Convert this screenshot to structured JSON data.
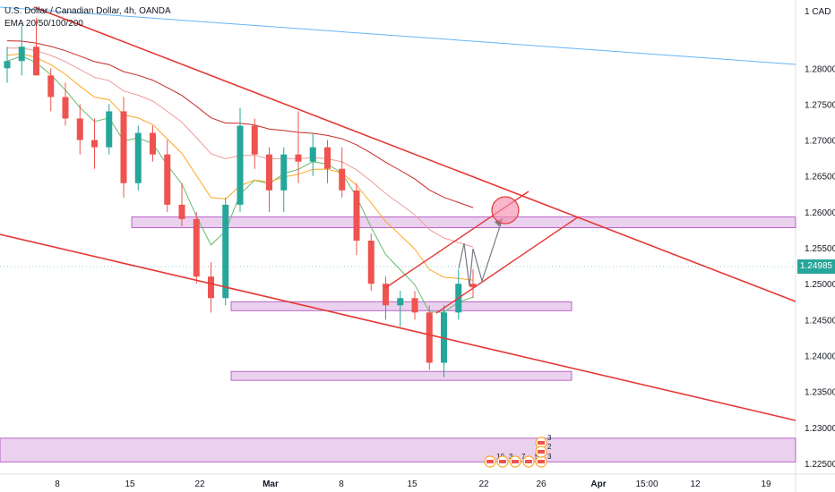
{
  "header": {
    "symbol_line": "U.S. Dollar / Canadian Dollar, 4h, OANDA",
    "indicator_line": "EMA 20/50/100/200"
  },
  "price_axis": {
    "unit": "1 CAD",
    "ticks": [
      "1.28000",
      "1.27500",
      "1.27000",
      "1.26500",
      "1.26000",
      "1.25500",
      "1.25000",
      "1.24500",
      "1.24000",
      "1.23500",
      "1.23000",
      "1.22500"
    ],
    "tick_values": [
      1.28,
      1.275,
      1.27,
      1.265,
      1.26,
      1.255,
      1.25,
      1.245,
      1.24,
      1.235,
      1.23,
      1.225
    ],
    "current_price": "1.24985"
  },
  "time_axis": {
    "labels": [
      "8",
      "15",
      "22",
      "Mar",
      "8",
      "15",
      "22",
      "26",
      "Apr",
      "15:00",
      "12",
      "19"
    ]
  },
  "event_markers": {
    "counts": [
      "10",
      "3",
      "7",
      "5",
      "3",
      "3",
      "2"
    ]
  },
  "colors": {
    "up": "#26a69a",
    "down": "#ef5350",
    "trendline": "#e53935",
    "zone_fill": "#e1bee7",
    "zone_stroke": "#ab47bc",
    "blue_line": "#64b5f6",
    "ema20": "#66bb6a",
    "ema50": "#ffa726",
    "ema100": "#ef9a9a",
    "ema200": "#c62828"
  },
  "chart_data": {
    "type": "candlestick",
    "instrument": "U.S. Dollar / Canadian Dollar",
    "timeframe": "4h",
    "ylim": [
      1.2235,
      1.2895
    ],
    "current_price": 1.24985,
    "candles_approx": [
      {
        "o": 1.28,
        "h": 1.283,
        "l": 1.278,
        "c": 1.281
      },
      {
        "o": 1.281,
        "h": 1.286,
        "l": 1.279,
        "c": 1.283
      },
      {
        "o": 1.283,
        "h": 1.287,
        "l": 1.28,
        "c": 1.279
      },
      {
        "o": 1.279,
        "h": 1.28,
        "l": 1.274,
        "c": 1.276
      },
      {
        "o": 1.276,
        "h": 1.278,
        "l": 1.272,
        "c": 1.273
      },
      {
        "o": 1.273,
        "h": 1.275,
        "l": 1.268,
        "c": 1.27
      },
      {
        "o": 1.27,
        "h": 1.273,
        "l": 1.266,
        "c": 1.269
      },
      {
        "o": 1.269,
        "h": 1.275,
        "l": 1.268,
        "c": 1.274
      },
      {
        "o": 1.274,
        "h": 1.276,
        "l": 1.262,
        "c": 1.264
      },
      {
        "o": 1.264,
        "h": 1.272,
        "l": 1.263,
        "c": 1.271
      },
      {
        "o": 1.271,
        "h": 1.272,
        "l": 1.267,
        "c": 1.268
      },
      {
        "o": 1.268,
        "h": 1.27,
        "l": 1.26,
        "c": 1.261
      },
      {
        "o": 1.261,
        "h": 1.264,
        "l": 1.258,
        "c": 1.259
      },
      {
        "o": 1.259,
        "h": 1.26,
        "l": 1.25,
        "c": 1.251
      },
      {
        "o": 1.251,
        "h": 1.253,
        "l": 1.246,
        "c": 1.248
      },
      {
        "o": 1.248,
        "h": 1.262,
        "l": 1.247,
        "c": 1.261
      },
      {
        "o": 1.261,
        "h": 1.2745,
        "l": 1.26,
        "c": 1.272
      },
      {
        "o": 1.272,
        "h": 1.273,
        "l": 1.266,
        "c": 1.268
      },
      {
        "o": 1.268,
        "h": 1.269,
        "l": 1.26,
        "c": 1.263
      },
      {
        "o": 1.263,
        "h": 1.269,
        "l": 1.26,
        "c": 1.268
      },
      {
        "o": 1.268,
        "h": 1.274,
        "l": 1.264,
        "c": 1.267
      },
      {
        "o": 1.267,
        "h": 1.271,
        "l": 1.265,
        "c": 1.269
      },
      {
        "o": 1.269,
        "h": 1.27,
        "l": 1.264,
        "c": 1.266
      },
      {
        "o": 1.266,
        "h": 1.269,
        "l": 1.262,
        "c": 1.263
      },
      {
        "o": 1.263,
        "h": 1.264,
        "l": 1.254,
        "c": 1.256
      },
      {
        "o": 1.256,
        "h": 1.257,
        "l": 1.249,
        "c": 1.25
      },
      {
        "o": 1.25,
        "h": 1.251,
        "l": 1.245,
        "c": 1.247
      },
      {
        "o": 1.247,
        "h": 1.249,
        "l": 1.244,
        "c": 1.248
      },
      {
        "o": 1.248,
        "h": 1.249,
        "l": 1.245,
        "c": 1.246
      },
      {
        "o": 1.246,
        "h": 1.247,
        "l": 1.238,
        "c": 1.239
      },
      {
        "o": 1.239,
        "h": 1.247,
        "l": 1.237,
        "c": 1.246
      },
      {
        "o": 1.246,
        "h": 1.252,
        "l": 1.245,
        "c": 1.25
      },
      {
        "o": 1.25,
        "h": 1.252,
        "l": 1.248,
        "c": 1.2495
      }
    ],
    "zones": [
      {
        "top": 1.2593,
        "bottom": 1.2578
      },
      {
        "top": 1.2475,
        "bottom": 1.2465
      },
      {
        "top": 1.2378,
        "bottom": 1.2368
      },
      {
        "top": 1.2285,
        "bottom": 1.2252
      }
    ]
  }
}
